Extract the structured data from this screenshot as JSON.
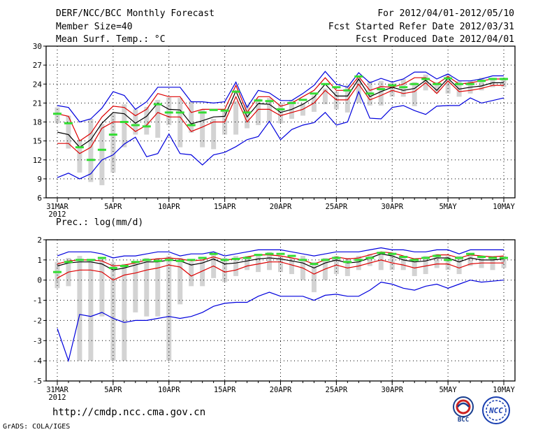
{
  "header": {
    "title": "DERF/NCC/BCC Monthly Forecast",
    "member_size": "Member Size=40",
    "variable": "Mean Surf. Temp.: °C",
    "forecast_period": "For 2012/04/01-2012/05/10",
    "fcst_started": "Fcst Started Refer Date 2012/03/31",
    "fcst_produced": "Fcst Produced Date 2012/04/01"
  },
  "footer": {
    "url": "http://cmdp.ncc.cma.gov.cn",
    "grads_credit": "GrADS: COLA/IGES",
    "bcc_logo_text": "BCC",
    "ncc_logo_text": "NCC"
  },
  "colors": {
    "max_line": "#0000dd",
    "min_line": "#0000dd",
    "upper_line": "#dd0000",
    "lower_line": "#dd0000",
    "mean_line": "#000000",
    "obs_marker": "#33dd33",
    "box": "#d3d3d3",
    "grid": "#000000"
  },
  "chart_data": [
    {
      "type": "line",
      "name": "temperature",
      "title": "Mean Surf. Temp.: °C",
      "ylabel": "°C",
      "ylim": [
        6,
        30
      ],
      "yticks": [
        6,
        9,
        12,
        15,
        18,
        21,
        24,
        27,
        30
      ],
      "x": [
        0,
        1,
        2,
        3,
        4,
        5,
        6,
        7,
        8,
        9,
        10,
        11,
        12,
        13,
        14,
        15,
        16,
        17,
        18,
        19,
        20,
        21,
        22,
        23,
        24,
        25,
        26,
        27,
        28,
        29,
        30,
        31,
        32,
        33,
        34,
        35,
        36,
        37,
        38,
        39,
        40
      ],
      "xticks": [
        {
          "x": 0,
          "label": "31MAR",
          "sub": "2012"
        },
        {
          "x": 5,
          "label": "5APR"
        },
        {
          "x": 10,
          "label": "10APR"
        },
        {
          "x": 15,
          "label": "15APR"
        },
        {
          "x": 20,
          "label": "20APR"
        },
        {
          "x": 25,
          "label": "25APR"
        },
        {
          "x": 30,
          "label": "30APR"
        },
        {
          "x": 35,
          "label": "5MAY"
        },
        {
          "x": 40,
          "label": "10MAY"
        }
      ],
      "series": [
        {
          "name": "max",
          "color": "#0000dd",
          "values": [
            20.6,
            20.3,
            18.0,
            18.5,
            20.2,
            22.8,
            22.2,
            20.0,
            21.2,
            23.5,
            23.5,
            23.5,
            21.2,
            21.2,
            21.0,
            21.2,
            24.3,
            20.3,
            23.0,
            22.6,
            21.4,
            21.4,
            22.5,
            23.8,
            26.0,
            24.0,
            23.5,
            25.8,
            24.2,
            24.9,
            24.3,
            24.8,
            25.9,
            25.9,
            24.8,
            25.6,
            24.5,
            24.5,
            24.8,
            25.3,
            25.3
          ]
        },
        {
          "name": "upper",
          "color": "#dd0000",
          "values": [
            19.3,
            18.9,
            15.0,
            16.2,
            18.8,
            20.5,
            20.3,
            19.0,
            20.0,
            22.5,
            22.0,
            22.0,
            19.5,
            20.0,
            20.0,
            20.0,
            23.8,
            19.5,
            22.0,
            22.0,
            20.5,
            21.0,
            22.0,
            23.0,
            25.0,
            23.0,
            23.0,
            25.2,
            23.0,
            23.6,
            23.5,
            24.0,
            25.0,
            25.0,
            24.0,
            25.2,
            24.0,
            24.2,
            24.5,
            24.8,
            24.8
          ]
        },
        {
          "name": "mean",
          "color": "#000000",
          "values": [
            16.4,
            16.0,
            14.0,
            15.2,
            17.8,
            19.5,
            19.3,
            17.8,
            18.9,
            21.0,
            20.0,
            19.9,
            17.7,
            18.2,
            18.8,
            18.9,
            22.9,
            18.8,
            20.9,
            20.8,
            19.5,
            20.0,
            20.8,
            21.9,
            24.0,
            22.1,
            22.1,
            24.8,
            22.0,
            22.8,
            23.5,
            23.0,
            23.3,
            24.6,
            23.0,
            24.9,
            23.2,
            23.5,
            23.7,
            24.2,
            24.2
          ]
        },
        {
          "name": "lower",
          "color": "#dd0000",
          "values": [
            14.6,
            14.6,
            13.0,
            14.0,
            17.0,
            18.0,
            18.0,
            16.5,
            17.5,
            19.5,
            18.8,
            18.8,
            16.5,
            17.2,
            18.0,
            18.0,
            22.0,
            18.0,
            20.0,
            20.0,
            19.0,
            19.5,
            20.0,
            21.0,
            23.0,
            21.5,
            21.5,
            24.0,
            21.5,
            22.2,
            23.0,
            22.5,
            22.8,
            24.2,
            22.5,
            24.5,
            22.8,
            23.0,
            23.3,
            23.8,
            23.8
          ]
        },
        {
          "name": "min",
          "color": "#0000dd",
          "values": [
            9.2,
            9.9,
            9.0,
            9.8,
            12.0,
            12.8,
            14.5,
            15.6,
            12.5,
            13.0,
            16.1,
            13.0,
            12.8,
            11.2,
            12.8,
            13.2,
            14.1,
            15.2,
            15.7,
            18.1,
            15.2,
            16.8,
            17.5,
            17.9,
            19.5,
            17.5,
            18.0,
            22.8,
            18.6,
            18.5,
            20.3,
            20.6,
            19.8,
            19.2,
            20.5,
            20.6,
            20.6,
            21.8,
            21.0,
            21.4,
            21.8
          ]
        }
      ],
      "boxes": [
        [
          17.8,
          20.3
        ],
        [
          13.8,
          19.0
        ],
        [
          10.0,
          15.2
        ],
        [
          8.5,
          18.5
        ],
        [
          8.0,
          17.7
        ],
        [
          10.0,
          19.3
        ],
        [
          14.0,
          20.8
        ],
        [
          16.0,
          20.0
        ],
        [
          16.0,
          20.4
        ],
        [
          15.5,
          21.5
        ],
        [
          17.5,
          21.9
        ],
        [
          14.0,
          21.8
        ],
        [
          16.3,
          21.3
        ],
        [
          14.0,
          20.0
        ],
        [
          13.7,
          18.5
        ],
        [
          16.0,
          20.0
        ],
        [
          16.0,
          21.3
        ],
        [
          17.0,
          20.8
        ],
        [
          17.5,
          21.7
        ],
        [
          18.0,
          21.8
        ],
        [
          17.8,
          21.0
        ],
        [
          18.5,
          21.5
        ],
        [
          19.0,
          21.0
        ],
        [
          19.6,
          22.2
        ],
        [
          20.8,
          23.3
        ],
        [
          20.0,
          22.8
        ],
        [
          19.5,
          23.8
        ],
        [
          21.0,
          25.0
        ],
        [
          20.6,
          24.5
        ],
        [
          20.6,
          24.5
        ],
        [
          22.0,
          24.2
        ],
        [
          22.0,
          24.8
        ],
        [
          20.5,
          24.3
        ],
        [
          23.0,
          25.5
        ],
        [
          22.6,
          24.3
        ],
        [
          22.5,
          25.6
        ],
        [
          22.0,
          24.5
        ],
        [
          22.5,
          24.5
        ],
        [
          23.0,
          25.0
        ],
        [
          23.5,
          25.0
        ],
        [
          23.5,
          25.0
        ]
      ],
      "obs": [
        19.3,
        17.8,
        14.0,
        12.0,
        13.6,
        16.0,
        18.0,
        17.5,
        17.3,
        20.8,
        19.5,
        19.5,
        17.5,
        19.5,
        19.9,
        19.8,
        22.8,
        19.5,
        21.4,
        21.3,
        20.0,
        21.0,
        21.5,
        22.5,
        24.0,
        23.5,
        23.0,
        25.2,
        22.5,
        23.2,
        23.8,
        23.5,
        24.0,
        24.8,
        24.0,
        24.9,
        24.0,
        24.0,
        24.5,
        24.8,
        24.8
      ]
    },
    {
      "type": "line",
      "name": "precipitation",
      "title": "Prec.: log(mm/d)",
      "ylabel": "log(mm/d)",
      "ylim": [
        -5,
        2
      ],
      "yticks": [
        -5,
        -4,
        -3,
        -2,
        -1,
        0,
        1,
        2
      ],
      "x": [
        0,
        1,
        2,
        3,
        4,
        5,
        6,
        7,
        8,
        9,
        10,
        11,
        12,
        13,
        14,
        15,
        16,
        17,
        18,
        19,
        20,
        21,
        22,
        23,
        24,
        25,
        26,
        27,
        28,
        29,
        30,
        31,
        32,
        33,
        34,
        35,
        36,
        37,
        38,
        39,
        40
      ],
      "xticks": [
        {
          "x": 0,
          "label": "31MAR",
          "sub": "2012"
        },
        {
          "x": 5,
          "label": "5APR"
        },
        {
          "x": 10,
          "label": "10APR"
        },
        {
          "x": 15,
          "label": "15APR"
        },
        {
          "x": 20,
          "label": "20APR"
        },
        {
          "x": 25,
          "label": "25APR"
        },
        {
          "x": 30,
          "label": "30APR"
        },
        {
          "x": 35,
          "label": "5MAY"
        },
        {
          "x": 40,
          "label": "10MAY"
        }
      ],
      "series": [
        {
          "name": "max",
          "color": "#0000dd",
          "values": [
            1.2,
            1.4,
            1.4,
            1.4,
            1.3,
            1.1,
            1.2,
            1.2,
            1.3,
            1.4,
            1.4,
            1.2,
            1.3,
            1.3,
            1.4,
            1.2,
            1.3,
            1.4,
            1.5,
            1.5,
            1.5,
            1.4,
            1.3,
            1.2,
            1.3,
            1.4,
            1.4,
            1.4,
            1.5,
            1.6,
            1.5,
            1.5,
            1.4,
            1.4,
            1.5,
            1.5,
            1.3,
            1.5,
            1.5,
            1.5,
            1.5
          ]
        },
        {
          "name": "upper",
          "color": "#dd0000",
          "values": [
            0.8,
            0.95,
            1.0,
            1.0,
            0.95,
            0.7,
            0.75,
            0.85,
            1.0,
            1.05,
            1.1,
            1.05,
            0.95,
            1.0,
            1.15,
            1.0,
            1.05,
            1.15,
            1.25,
            1.25,
            1.2,
            1.1,
            1.0,
            0.8,
            1.0,
            1.15,
            1.05,
            1.1,
            1.25,
            1.4,
            1.35,
            1.2,
            1.05,
            1.1,
            1.25,
            1.25,
            1.1,
            1.25,
            1.2,
            1.15,
            1.2
          ]
        },
        {
          "name": "mean",
          "color": "#000000",
          "values": [
            0.7,
            0.85,
            0.9,
            0.9,
            0.8,
            0.5,
            0.6,
            0.75,
            0.9,
            0.9,
            1.0,
            0.95,
            0.75,
            0.85,
            1.05,
            0.8,
            0.85,
            0.95,
            1.05,
            1.1,
            1.05,
            0.95,
            0.85,
            0.6,
            0.85,
            1.0,
            0.85,
            0.9,
            1.1,
            1.3,
            1.2,
            1.0,
            0.9,
            0.95,
            1.1,
            1.1,
            0.9,
            1.1,
            1.0,
            1.0,
            1.05
          ]
        },
        {
          "name": "lower",
          "color": "#dd0000",
          "values": [
            0.1,
            0.4,
            0.5,
            0.5,
            0.4,
            0.0,
            0.25,
            0.35,
            0.5,
            0.6,
            0.75,
            0.65,
            0.2,
            0.45,
            0.7,
            0.4,
            0.5,
            0.7,
            0.8,
            0.9,
            0.9,
            0.75,
            0.6,
            0.3,
            0.55,
            0.75,
            0.6,
            0.7,
            0.85,
            1.0,
            0.85,
            0.75,
            0.6,
            0.7,
            0.8,
            0.8,
            0.6,
            0.8,
            0.85,
            0.85,
            0.85
          ]
        },
        {
          "name": "min",
          "color": "#0000dd",
          "values": [
            -2.4,
            -4.0,
            -1.7,
            -1.8,
            -1.6,
            -1.9,
            -2.1,
            -2.0,
            -2.0,
            -1.9,
            -1.8,
            -1.9,
            -1.8,
            -1.6,
            -1.3,
            -1.15,
            -1.1,
            -1.1,
            -0.8,
            -0.6,
            -0.8,
            -0.8,
            -0.8,
            -1.0,
            -0.75,
            -0.7,
            -0.8,
            -0.8,
            -0.5,
            -0.1,
            -0.2,
            -0.4,
            -0.5,
            -0.3,
            -0.2,
            -0.4,
            -0.2,
            0.0,
            -0.1,
            -0.05,
            0.0
          ]
        }
      ],
      "boxes": [
        [
          -0.4,
          0.9
        ],
        [
          -0.3,
          1.1
        ],
        [
          -4.0,
          1.2
        ],
        [
          -4.0,
          1.0
        ],
        [
          -1.8,
          1.1
        ],
        [
          -4.0,
          0.9
        ],
        [
          -4.0,
          0.8
        ],
        [
          -1.6,
          0.9
        ],
        [
          -1.8,
          1.1
        ],
        [
          -1.8,
          1.1
        ],
        [
          -4.0,
          1.2
        ],
        [
          -1.2,
          1.1
        ],
        [
          -0.3,
          0.9
        ],
        [
          -0.3,
          1.0
        ],
        [
          0.1,
          1.3
        ],
        [
          -0.1,
          1.1
        ],
        [
          0.2,
          1.2
        ],
        [
          0.5,
          1.2
        ],
        [
          0.4,
          1.3
        ],
        [
          0.5,
          1.4
        ],
        [
          0.4,
          1.2
        ],
        [
          0.3,
          1.1
        ],
        [
          0.0,
          1.2
        ],
        [
          -0.6,
          0.9
        ],
        [
          0.0,
          1.1
        ],
        [
          0.3,
          1.2
        ],
        [
          0.2,
          1.1
        ],
        [
          0.5,
          1.2
        ],
        [
          0.7,
          1.3
        ],
        [
          0.5,
          1.4
        ],
        [
          0.5,
          1.3
        ],
        [
          0.5,
          1.2
        ],
        [
          0.2,
          1.1
        ],
        [
          0.3,
          1.2
        ],
        [
          0.6,
          1.3
        ],
        [
          0.5,
          1.2
        ],
        [
          0.3,
          1.2
        ],
        [
          0.7,
          1.3
        ],
        [
          0.6,
          1.2
        ],
        [
          0.5,
          1.2
        ],
        [
          0.6,
          1.2
        ]
      ],
      "obs": [
        0.4,
        0.9,
        1.0,
        1.0,
        1.1,
        0.6,
        0.7,
        0.9,
        1.0,
        0.95,
        1.0,
        0.95,
        1.0,
        1.1,
        1.3,
        1.0,
        1.05,
        1.1,
        1.25,
        1.3,
        1.3,
        1.2,
        1.0,
        0.8,
        1.0,
        1.1,
        0.9,
        1.0,
        1.1,
        1.35,
        1.3,
        1.15,
        1.0,
        1.1,
        1.2,
        1.0,
        1.1,
        1.3,
        1.15,
        1.1,
        1.1
      ]
    }
  ]
}
